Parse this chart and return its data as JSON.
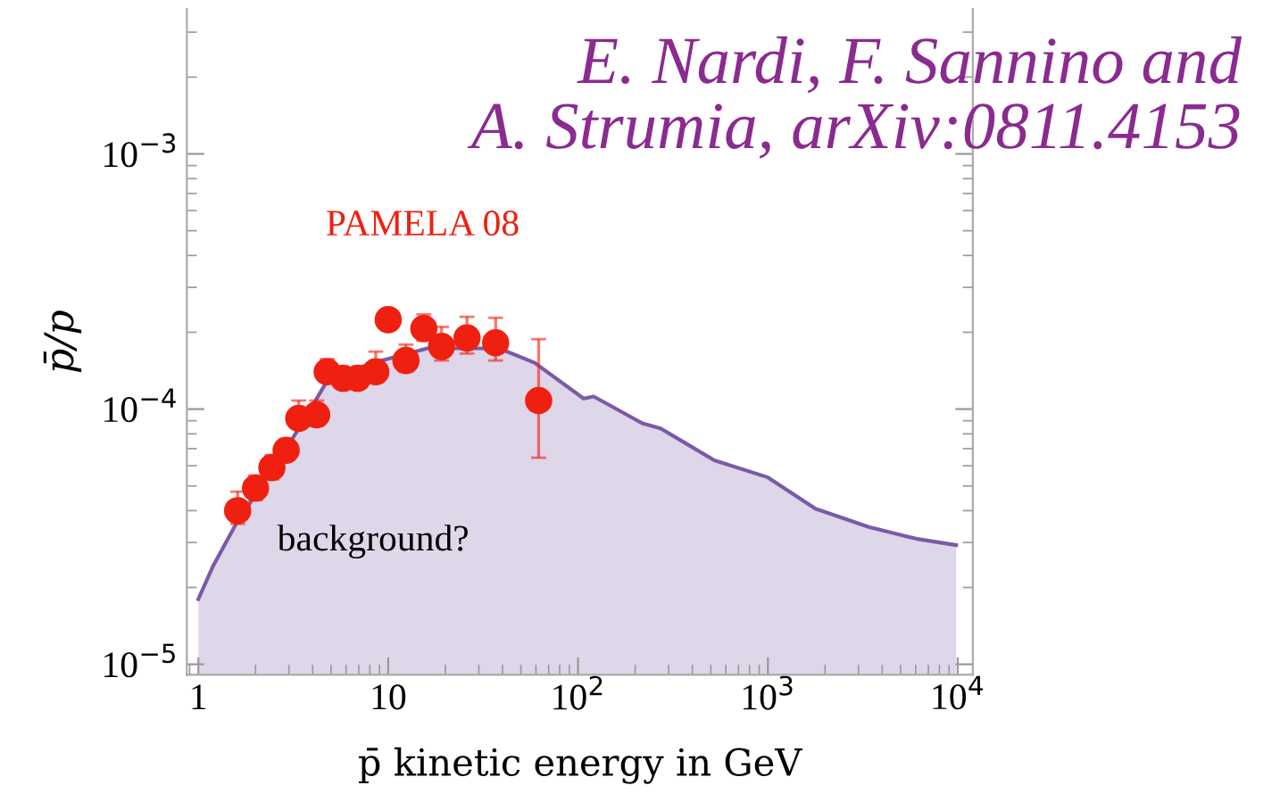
{
  "chart_data": {
    "type": "scatter",
    "xlabel": "p̄ kinetic energy in GeV",
    "ylabel": "p̄/p",
    "log": "xy",
    "grid": false,
    "legend": false,
    "xlim": [
      0.87,
      12000
    ],
    "ylim": [
      9.1e-06,
      0.0037
    ],
    "xticks": [
      1,
      10,
      {
        "value": 100,
        "label": "10$^{2}$"
      },
      {
        "value": 1000,
        "label": "10$^{3}$"
      },
      {
        "value": 10000,
        "label": "10$^{4}$"
      }
    ],
    "yticks": [
      {
        "value": 1e-05,
        "label": "10$^{−5}$"
      },
      {
        "value": 0.0001,
        "label": "10$^{−4}$"
      },
      {
        "value": 0.001,
        "label": "10$^{−3}$"
      }
    ],
    "series": [
      {
        "type": "area",
        "color": "#7b5aa6",
        "x": [
          1,
          1.19,
          1.58,
          2.83,
          3.52,
          4.68,
          5.44,
          8.4,
          16.1,
          38.4,
          59,
          107,
          121,
          218,
          272,
          522,
          1000,
          1780,
          3400,
          6100,
          9800
        ],
        "values": [
          1.8e-05,
          2.41e-05,
          3.55e-05,
          6.8e-05,
          8.8e-05,
          0.000126,
          0.000136,
          0.000152,
          0.000173,
          0.000173,
          0.000152,
          0.00011,
          0.000112,
          8.8e-05,
          8.4e-05,
          6.3e-05,
          5.4e-05,
          4.07e-05,
          3.45e-05,
          3.1e-05,
          2.93e-05
        ]
      },
      {
        "name": "PAMELA 08",
        "color": "#f02010",
        "marker": "circle",
        "x": [
          1.61,
          2.0,
          2.44,
          2.9,
          3.38,
          4.2,
          4.77,
          5.8,
          6.9,
          8.6,
          10,
          12.4,
          15.4,
          19.1,
          26,
          36.8,
          62
        ],
        "values": [
          4e-05,
          4.9e-05,
          5.9e-05,
          6.9e-05,
          9.2e-05,
          9.5e-05,
          0.00014,
          0.000132,
          0.000132,
          0.00014,
          0.000224,
          0.000155,
          0.000207,
          0.000176,
          0.00019,
          0.000182,
          0.000108
        ],
        "errors": [
          [
            3.55e-05,
            4.75e-05
          ],
          [
            4.4e-05,
            5.5e-05
          ],
          [
            5.3e-05,
            6.6e-05
          ],
          [
            6.3e-05,
            7.6e-05
          ],
          [
            8.4e-05,
            0.000108
          ],
          [
            8.6e-05,
            0.000108
          ],
          [
            0.00013,
            0.000157
          ],
          [
            0.000122,
            0.000143
          ],
          [
            0.000122,
            0.000145
          ],
          [
            0.000128,
            0.000168
          ],
          null,
          [
            0.00014,
            0.000179
          ],
          [
            0.000185,
            0.000235
          ],
          [
            0.000155,
            0.00021
          ],
          [
            0.000165,
            0.00023
          ],
          [
            0.000155,
            0.000228
          ],
          [
            6.45e-05,
            0.000188
          ]
        ]
      }
    ],
    "annotations": [
      "E. Nardi, F. Sannino and\nA. Strumia, arXiv:0811.4153",
      "background?"
    ]
  }
}
